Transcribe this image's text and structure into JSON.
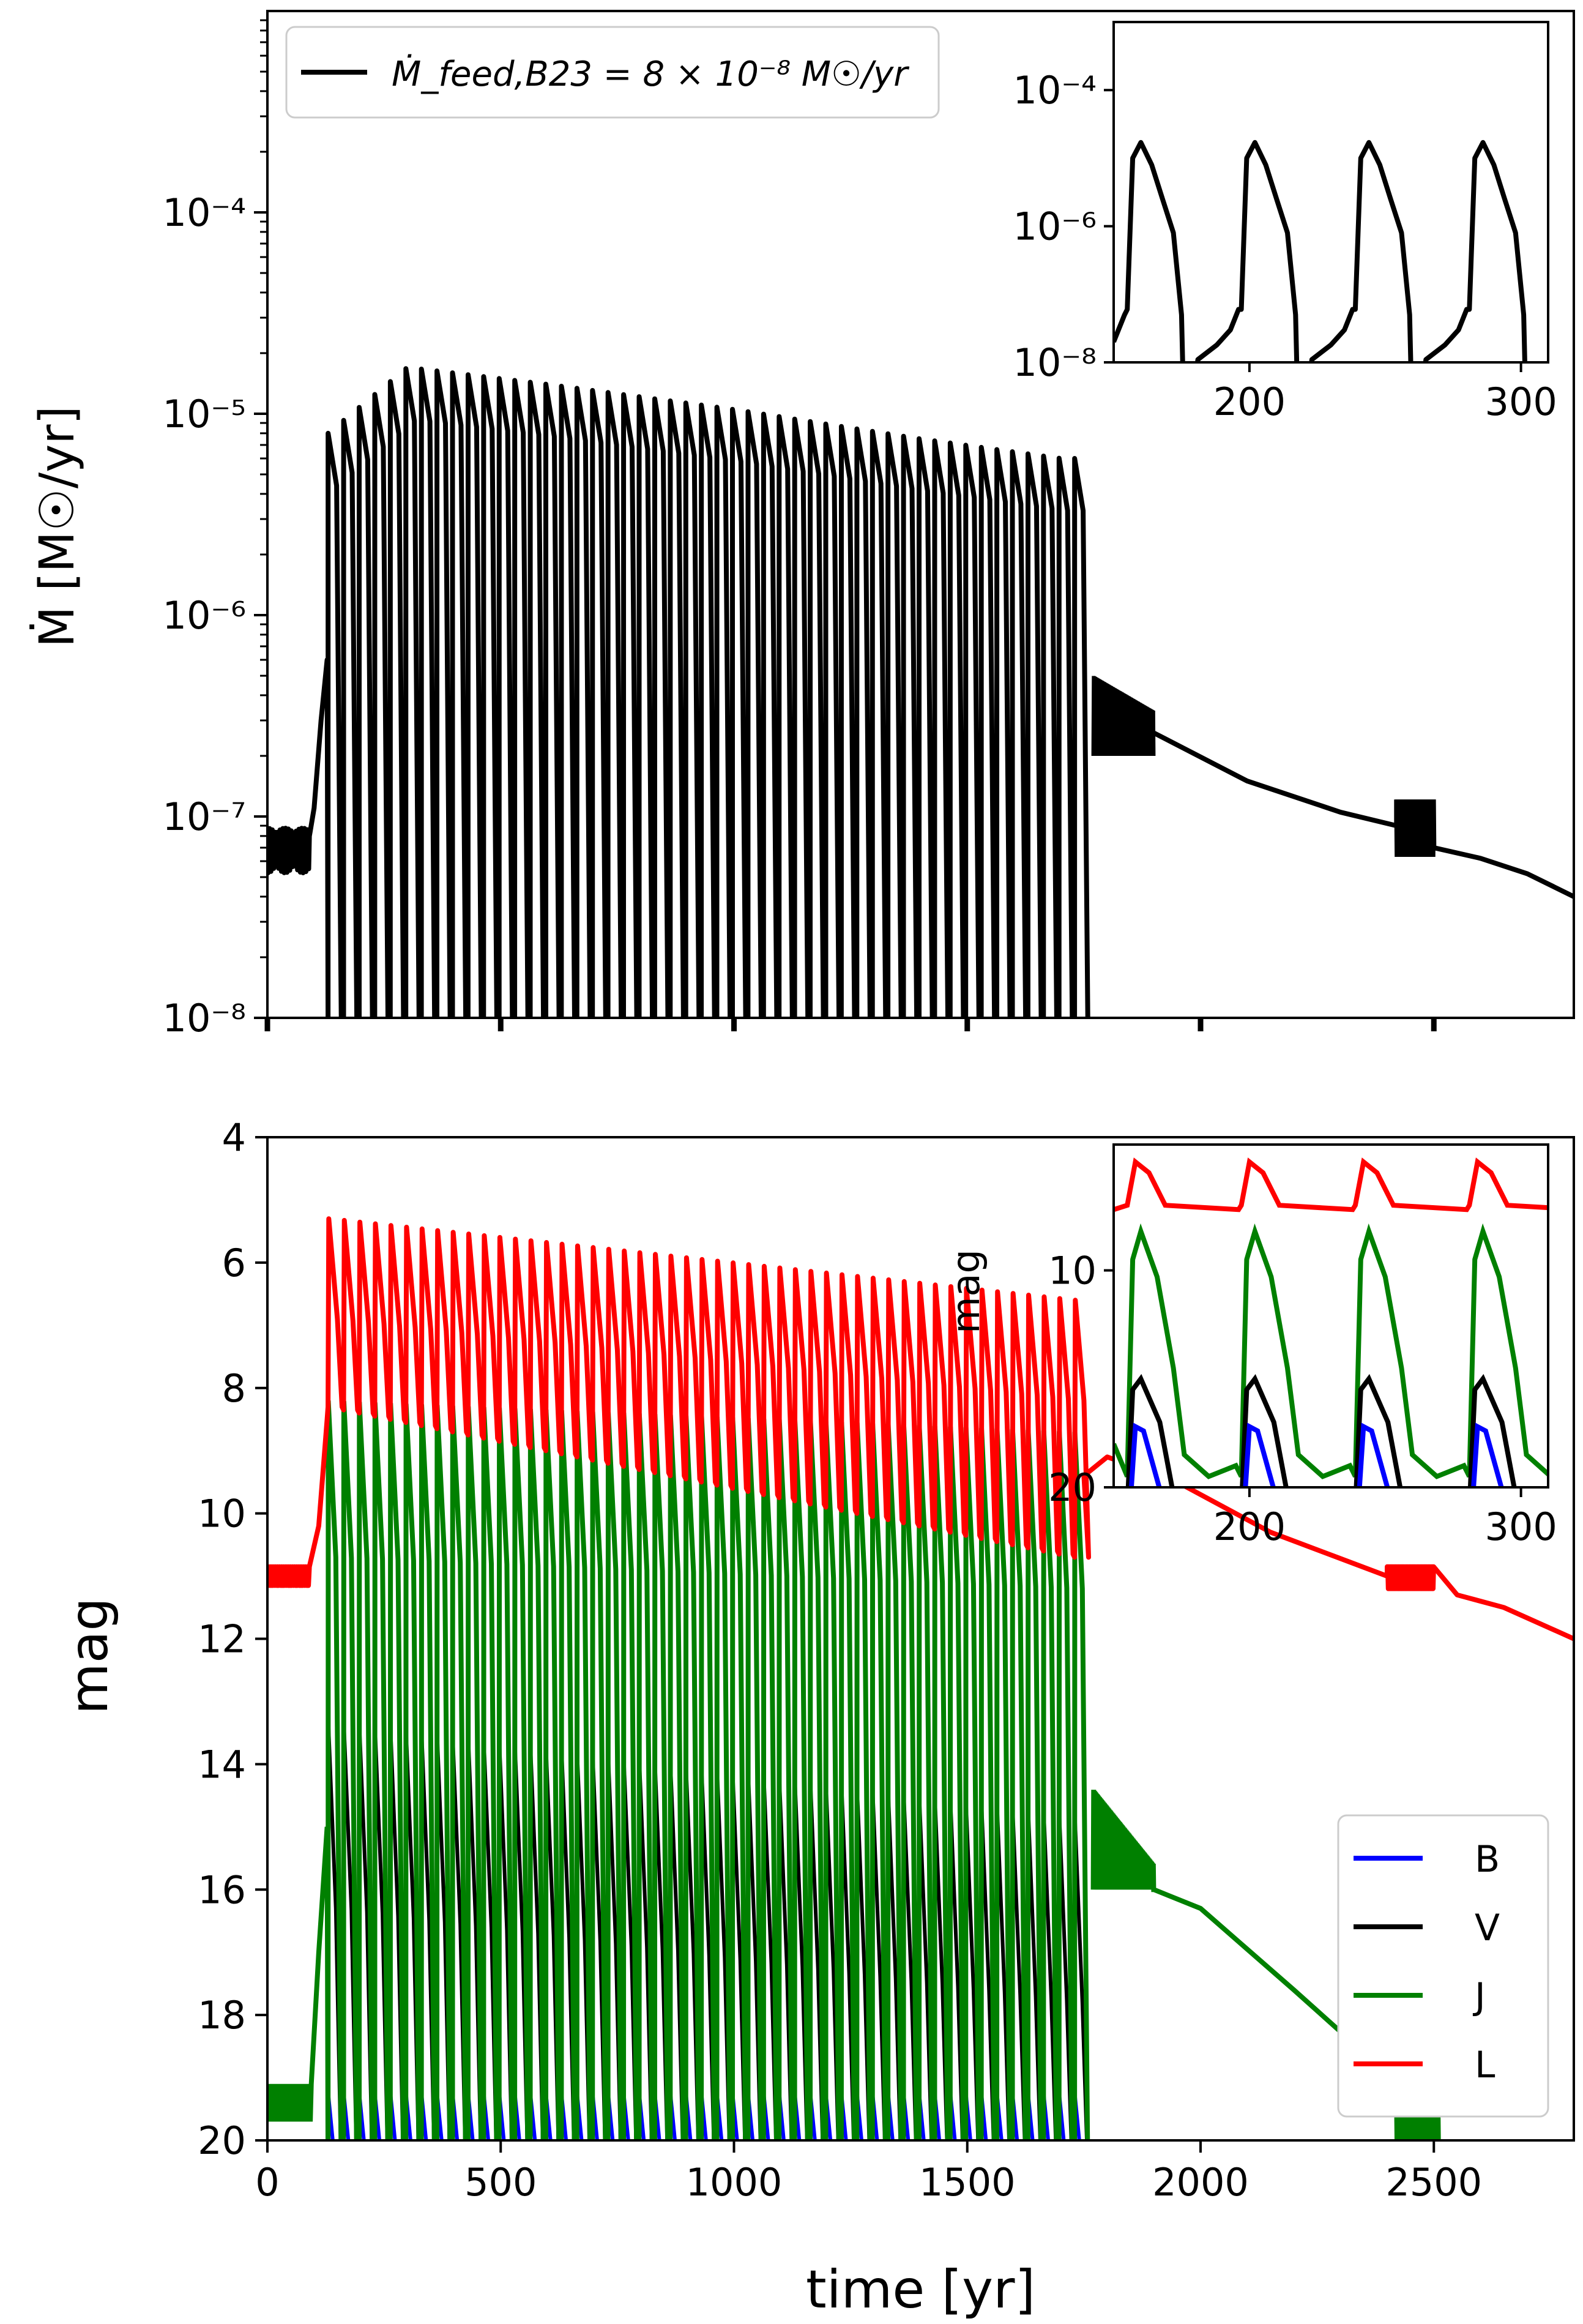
{
  "chart_data": [
    {
      "type": "line",
      "panel": "top",
      "ylabel": "Ṁ [M☉/yr]",
      "xlim": [
        0,
        2800
      ],
      "ylim": [
        1e-08,
        0.001
      ],
      "yscale": "log",
      "ytick_labels": [
        "10⁻⁸",
        "10⁻⁷",
        "10⁻⁶",
        "10⁻⁵",
        "10⁻⁴"
      ],
      "legend": {
        "placement": "top-left",
        "entries": [
          "Ṁ_feed,B23 = 8 × 10⁻⁸ M☉/yr"
        ]
      },
      "colors": {
        "line": "#000000"
      },
      "series": [
        {
          "name": "Ṁ_feed,B23 = 8 × 10⁻⁸ M☉/yr",
          "segments": [
            {
              "t": [
                0,
                90
              ],
              "value": 7e-08,
              "kind": "flat-noisy"
            },
            {
              "t": [
                90,
                130
              ],
              "value_range": [
                1e-07,
                6e-07
              ],
              "kind": "ramp"
            },
            {
              "t": [
                130,
                1730
              ],
              "kind": "outbursts",
              "count": 49,
              "period_yr": 32.6,
              "low": 1e-08,
              "peak_envelope": [
                [
                  130,
                  8e-06
                ],
                [
                  300,
                  1.7e-05
                ],
                [
                  600,
                  1.4e-05
                ],
                [
                  1000,
                  1.05e-05
                ],
                [
                  1400,
                  7.5e-06
                ],
                [
                  1700,
                  6e-06
                ]
              ]
            },
            {
              "t": [
                1770,
                1900
              ],
              "value_range": [
                2e-07,
                6e-07
              ],
              "kind": "oscillating-band"
            },
            {
              "t": [
                1900,
                2420
              ],
              "value_range": [
                2.5e-07,
                9e-08
              ],
              "kind": "decay"
            },
            {
              "t": [
                2420,
                2500
              ],
              "value": 9e-08,
              "kind": "noisy-blip"
            },
            {
              "t": [
                2500,
                2800
              ],
              "value_range": [
                7e-08,
                4e-08
              ],
              "kind": "decay"
            }
          ]
        }
      ],
      "inset": {
        "xlim": [
          150,
          310
        ],
        "ylim": [
          1e-08,
          0.001
        ],
        "xtick_labels": [
          "200",
          "300"
        ],
        "ytick_labels": [
          "10⁻⁸",
          "10⁻⁶",
          "10⁻⁴"
        ],
        "burst_starts": [
          155,
          197,
          239,
          281
        ],
        "burst_peak": 1.7e-05,
        "burst_shoulder": 2e-06
      }
    },
    {
      "type": "line",
      "panel": "bottom",
      "xlabel": "time [yr]",
      "ylabel": "mag",
      "xlim": [
        0,
        2800
      ],
      "ylim": [
        20,
        4
      ],
      "inverted_y": true,
      "xtick_labels": [
        "0",
        "500",
        "1000",
        "1500",
        "2000",
        "2500"
      ],
      "ytick_labels": [
        "4",
        "6",
        "8",
        "10",
        "12",
        "14",
        "16",
        "18",
        "20"
      ],
      "legend": {
        "placement": "bottom-right",
        "entries": [
          "B",
          "V",
          "J",
          "L"
        ]
      },
      "series": [
        {
          "name": "B",
          "color": "#0000ff",
          "baseline": 20.5,
          "outburst_peak": 19.3
        },
        {
          "name": "V",
          "color": "#000000",
          "baseline": 20.5,
          "outburst_peak_range": [
            13.3,
            14.8
          ]
        },
        {
          "name": "J",
          "color": "#008000",
          "baseline": 19.4,
          "outburst_peak_range": [
            8.2,
            8.7
          ],
          "post": [
            [
              1770,
              15.8
            ],
            [
              1900,
              16.0
            ],
            [
              2200,
              17.6
            ],
            [
              2450,
              19.2
            ],
            [
              2500,
              19.6
            ]
          ]
        },
        {
          "name": "L",
          "color": "#ff0000",
          "baseline": 11.0,
          "outburst_peak_range": [
            5.3,
            6.6
          ],
          "post": [
            [
              1770,
              9.1
            ],
            [
              1950,
              9.6
            ],
            [
              2400,
              11.0
            ],
            [
              2800,
              12.0
            ]
          ]
        }
      ],
      "inset": {
        "xlim": [
          150,
          310
        ],
        "ylim": [
          20,
          4
        ],
        "ylabel": "mag",
        "xtick_labels": [
          "200",
          "300"
        ],
        "ytick_labels": [
          "10",
          "20"
        ]
      }
    }
  ]
}
